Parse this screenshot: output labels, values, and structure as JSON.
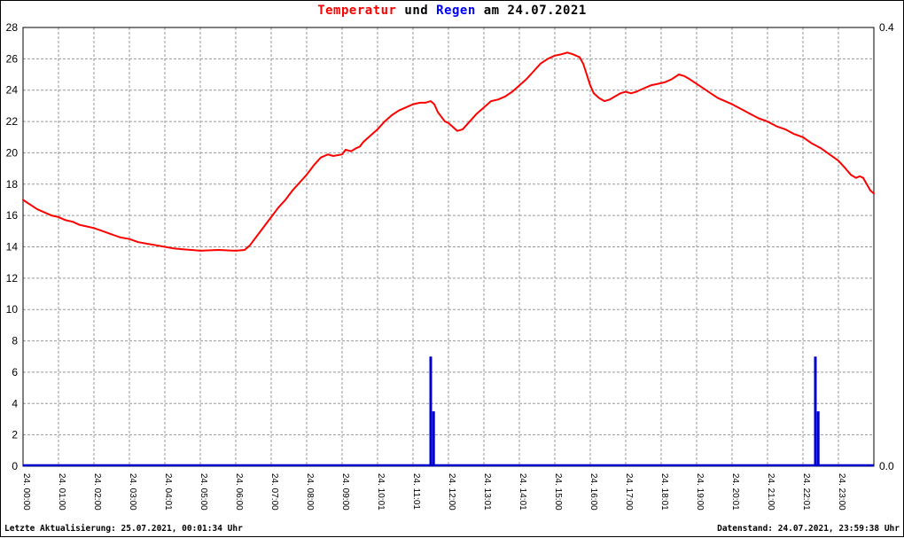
{
  "title": {
    "temperature": "Temperatur",
    "connector": " und ",
    "rain": "Regen",
    "date_suffix": " am 24.07.2021"
  },
  "footer": {
    "left": "Letzte Aktualisierung: 25.07.2021, 00:01:34 Uhr",
    "right": "Datenstand: 24.07.2021, 23:59:38 Uhr"
  },
  "colors": {
    "temperature": "#ff0000",
    "rain": "#0000cc",
    "title_rain": "#0000ff",
    "grid": "#999999",
    "axis": "#000000",
    "background": "#ffffff"
  },
  "chart_data": {
    "type": "line",
    "title": "Temperatur und Regen am 24.07.2021",
    "grid": true,
    "x_axis": {
      "unit": "hour",
      "range": [
        0,
        24
      ],
      "gridline_every": 1,
      "tick_labels": [
        "24. 00:00",
        "24. 01:00",
        "24. 02:00",
        "24. 03:00",
        "24. 04:01",
        "24. 05:00",
        "24. 06:00",
        "24. 07:00",
        "24. 08:00",
        "24. 09:00",
        "24. 10:01",
        "24. 11:01",
        "24. 12:00",
        "24. 13:01",
        "24. 14:01",
        "24. 15:00",
        "24. 16:00",
        "24. 17:00",
        "24. 18:01",
        "24. 19:00",
        "24. 20:01",
        "24. 21:00",
        "24. 22:01",
        "24. 23:00"
      ]
    },
    "y_left": {
      "name": "Temperatur",
      "range": [
        0,
        28
      ],
      "tick_step": 2
    },
    "y_right": {
      "name": "Regen",
      "range": [
        0.0,
        0.4
      ],
      "tick_labels_shown": [
        "0.4",
        "0.0"
      ]
    },
    "series": [
      {
        "name": "Temperatur",
        "type": "line",
        "axis": "left",
        "color": "#ff0000",
        "points": [
          [
            0,
            17.0
          ],
          [
            0.2,
            16.7
          ],
          [
            0.4,
            16.4
          ],
          [
            0.6,
            16.2
          ],
          [
            0.8,
            16.0
          ],
          [
            1.0,
            15.9
          ],
          [
            1.2,
            15.7
          ],
          [
            1.4,
            15.6
          ],
          [
            1.6,
            15.4
          ],
          [
            1.8,
            15.3
          ],
          [
            2.0,
            15.2
          ],
          [
            2.25,
            15.0
          ],
          [
            2.5,
            14.8
          ],
          [
            2.75,
            14.6
          ],
          [
            3.0,
            14.5
          ],
          [
            3.25,
            14.3
          ],
          [
            3.5,
            14.2
          ],
          [
            3.75,
            14.1
          ],
          [
            4.0,
            14.0
          ],
          [
            4.25,
            13.9
          ],
          [
            4.5,
            13.85
          ],
          [
            4.75,
            13.8
          ],
          [
            5.0,
            13.75
          ],
          [
            5.5,
            13.8
          ],
          [
            6.0,
            13.75
          ],
          [
            6.25,
            13.8
          ],
          [
            6.4,
            14.1
          ],
          [
            6.6,
            14.7
          ],
          [
            6.8,
            15.3
          ],
          [
            7.0,
            15.9
          ],
          [
            7.2,
            16.5
          ],
          [
            7.4,
            17.0
          ],
          [
            7.6,
            17.6
          ],
          [
            7.8,
            18.1
          ],
          [
            8.0,
            18.6
          ],
          [
            8.2,
            19.2
          ],
          [
            8.4,
            19.7
          ],
          [
            8.5,
            19.8
          ],
          [
            8.6,
            19.9
          ],
          [
            8.75,
            19.8
          ],
          [
            9.0,
            19.9
          ],
          [
            9.1,
            20.2
          ],
          [
            9.25,
            20.1
          ],
          [
            9.4,
            20.3
          ],
          [
            9.5,
            20.4
          ],
          [
            9.6,
            20.7
          ],
          [
            9.8,
            21.1
          ],
          [
            10.0,
            21.5
          ],
          [
            10.2,
            22.0
          ],
          [
            10.4,
            22.4
          ],
          [
            10.6,
            22.7
          ],
          [
            10.8,
            22.9
          ],
          [
            11.0,
            23.1
          ],
          [
            11.2,
            23.2
          ],
          [
            11.35,
            23.2
          ],
          [
            11.5,
            23.3
          ],
          [
            11.6,
            23.1
          ],
          [
            11.7,
            22.6
          ],
          [
            11.8,
            22.3
          ],
          [
            11.9,
            22.0
          ],
          [
            12.0,
            21.9
          ],
          [
            12.1,
            21.7
          ],
          [
            12.25,
            21.4
          ],
          [
            12.4,
            21.5
          ],
          [
            12.6,
            22.0
          ],
          [
            12.8,
            22.5
          ],
          [
            13.0,
            22.9
          ],
          [
            13.2,
            23.3
          ],
          [
            13.4,
            23.4
          ],
          [
            13.6,
            23.6
          ],
          [
            13.8,
            23.9
          ],
          [
            14.0,
            24.3
          ],
          [
            14.2,
            24.7
          ],
          [
            14.4,
            25.2
          ],
          [
            14.6,
            25.7
          ],
          [
            14.8,
            26.0
          ],
          [
            15.0,
            26.2
          ],
          [
            15.2,
            26.3
          ],
          [
            15.35,
            26.4
          ],
          [
            15.5,
            26.3
          ],
          [
            15.7,
            26.1
          ],
          [
            15.8,
            25.7
          ],
          [
            15.9,
            25.0
          ],
          [
            16.0,
            24.3
          ],
          [
            16.1,
            23.8
          ],
          [
            16.25,
            23.5
          ],
          [
            16.4,
            23.3
          ],
          [
            16.55,
            23.4
          ],
          [
            16.7,
            23.6
          ],
          [
            16.85,
            23.8
          ],
          [
            17.0,
            23.9
          ],
          [
            17.15,
            23.8
          ],
          [
            17.3,
            23.9
          ],
          [
            17.5,
            24.1
          ],
          [
            17.7,
            24.3
          ],
          [
            17.9,
            24.4
          ],
          [
            18.1,
            24.5
          ],
          [
            18.3,
            24.7
          ],
          [
            18.5,
            25.0
          ],
          [
            18.65,
            24.9
          ],
          [
            18.8,
            24.7
          ],
          [
            19.0,
            24.4
          ],
          [
            19.2,
            24.1
          ],
          [
            19.4,
            23.8
          ],
          [
            19.6,
            23.5
          ],
          [
            19.8,
            23.3
          ],
          [
            20.0,
            23.1
          ],
          [
            20.25,
            22.8
          ],
          [
            20.5,
            22.5
          ],
          [
            20.75,
            22.2
          ],
          [
            21.0,
            22.0
          ],
          [
            21.25,
            21.7
          ],
          [
            21.5,
            21.5
          ],
          [
            21.75,
            21.2
          ],
          [
            22.0,
            21.0
          ],
          [
            22.25,
            20.6
          ],
          [
            22.5,
            20.3
          ],
          [
            22.75,
            19.9
          ],
          [
            23.0,
            19.5
          ],
          [
            23.2,
            19.0
          ],
          [
            23.35,
            18.6
          ],
          [
            23.5,
            18.4
          ],
          [
            23.6,
            18.5
          ],
          [
            23.7,
            18.4
          ],
          [
            23.8,
            18.0
          ],
          [
            23.9,
            17.6
          ],
          [
            24.0,
            17.4
          ]
        ]
      },
      {
        "name": "Regen",
        "type": "bar",
        "axis": "right",
        "color": "#0000cc",
        "baseline": 0.0,
        "bars": [
          {
            "hour": 11.5,
            "value": 0.1
          },
          {
            "hour": 11.58,
            "value": 0.05
          },
          {
            "hour": 22.35,
            "value": 0.1
          },
          {
            "hour": 22.43,
            "value": 0.05
          }
        ]
      }
    ]
  }
}
